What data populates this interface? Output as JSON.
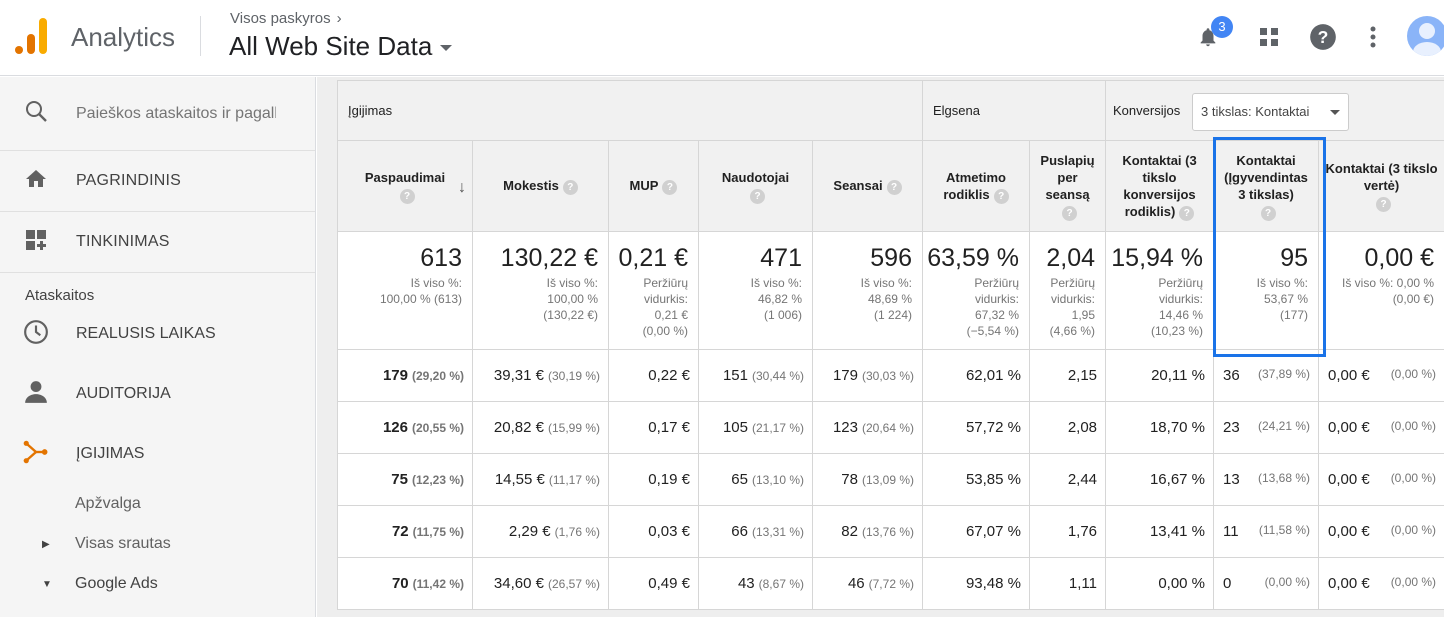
{
  "header": {
    "app_name": "Analytics",
    "account_path": "Visos paskyros",
    "view_name": "All Web Site Data",
    "notifications_count": "3",
    "colors": {
      "brand_orange": "#e37400",
      "brand_yellow": "#f9ab00",
      "badge_blue": "#4285f4"
    }
  },
  "sidebar": {
    "search_placeholder": "Paieškos ataskaitos ir pagalba",
    "home": "PAGRINDINIS",
    "customization": "TINKINIMAS",
    "reports_label": "Ataskaitos",
    "realtime": "REALUSIS LAIKAS",
    "audience": "AUDITORIJA",
    "acquisition": "ĮGIJIMAS",
    "overview": "Apžvalga",
    "all_traffic": "Visas srautas",
    "google_ads": "Google Ads"
  },
  "table": {
    "groups": {
      "acquisition": "Įgijimas",
      "behavior": "Elgsena",
      "conversions": "Konversijos",
      "goal_select": "3 tikslas: Kontaktai"
    },
    "columns": {
      "clicks": "Paspaudimai",
      "cost": "Mokestis",
      "cpc": "MUP",
      "users": "Naudotojai",
      "sessions": "Seansai",
      "bounce_rate": "Atmetimo rodiklis",
      "pages_per_session": "Puslapių per seansą",
      "conv_rate": "Kontaktai (3 tikslo konversijos rodiklis)",
      "completions": "Kontaktai (Įgyvendintas 3 tikslas)",
      "value": "Kontaktai (3 tikslo vertė)"
    },
    "totals": {
      "clicks": {
        "value": "613",
        "sub1": "Iš viso %:",
        "sub2": "100,00 % (613)"
      },
      "cost": {
        "value": "130,22 €",
        "sub1": "Iš viso %:",
        "sub2": "100,00 %",
        "sub3": "(130,22 €)"
      },
      "cpc": {
        "value": "0,21 €",
        "sub1": "Peržiūrų",
        "sub2": "vidurkis:",
        "sub3": "0,21 €",
        "sub4": "(0,00 %)"
      },
      "users": {
        "value": "471",
        "sub1": "Iš viso %:",
        "sub2": "46,82 %",
        "sub3": "(1 006)"
      },
      "sessions": {
        "value": "596",
        "sub1": "Iš viso %:",
        "sub2": "48,69 %",
        "sub3": "(1 224)"
      },
      "bounce_rate": {
        "value": "63,59 %",
        "sub1": "Peržiūrų",
        "sub2": "vidurkis:",
        "sub3": "67,32 %",
        "sub4": "(−5,54 %)"
      },
      "pages_per_session": {
        "value": "2,04",
        "sub1": "Peržiūrų",
        "sub2": "vidurkis:",
        "sub3": "1,95",
        "sub4": "(4,66 %)"
      },
      "conv_rate": {
        "value": "15,94 %",
        "sub1": "Peržiūrų",
        "sub2": "vidurkis:",
        "sub3": "14,46 %",
        "sub4": "(10,23 %)"
      },
      "completions": {
        "value": "95",
        "sub1": "Iš viso %:",
        "sub2": "53,67 %",
        "sub3": "(177)"
      },
      "value": {
        "value": "0,00 €",
        "sub1": "Iš viso %: 0,00 %",
        "sub2": "(0,00 €)"
      }
    },
    "rows": [
      {
        "clicks": "179",
        "clicks_pct": "(29,20 %)",
        "cost": "39,31 €",
        "cost_pct": "(30,19 %)",
        "cpc": "0,22 €",
        "users": "151",
        "users_pct": "(30,44 %)",
        "sessions": "179",
        "sessions_pct": "(30,03 %)",
        "bounce": "62,01 %",
        "pps": "2,15",
        "conv_rate": "20,11 %",
        "comp": "36",
        "comp_pct": "(37,89 %)",
        "value": "0,00 €",
        "value_pct": "(0,00 %)"
      },
      {
        "clicks": "126",
        "clicks_pct": "(20,55 %)",
        "cost": "20,82 €",
        "cost_pct": "(15,99 %)",
        "cpc": "0,17 €",
        "users": "105",
        "users_pct": "(21,17 %)",
        "sessions": "123",
        "sessions_pct": "(20,64 %)",
        "bounce": "57,72 %",
        "pps": "2,08",
        "conv_rate": "18,70 %",
        "comp": "23",
        "comp_pct": "(24,21 %)",
        "value": "0,00 €",
        "value_pct": "(0,00 %)"
      },
      {
        "clicks": "75",
        "clicks_pct": "(12,23 %)",
        "cost": "14,55 €",
        "cost_pct": "(11,17 %)",
        "cpc": "0,19 €",
        "users": "65",
        "users_pct": "(13,10 %)",
        "sessions": "78",
        "sessions_pct": "(13,09 %)",
        "bounce": "53,85 %",
        "pps": "2,44",
        "conv_rate": "16,67 %",
        "comp": "13",
        "comp_pct": "(13,68 %)",
        "value": "0,00 €",
        "value_pct": "(0,00 %)"
      },
      {
        "clicks": "72",
        "clicks_pct": "(11,75 %)",
        "cost": "2,29 €",
        "cost_pct": "(1,76 %)",
        "cpc": "0,03 €",
        "users": "66",
        "users_pct": "(13,31 %)",
        "sessions": "82",
        "sessions_pct": "(13,76 %)",
        "bounce": "67,07 %",
        "pps": "1,76",
        "conv_rate": "13,41 %",
        "comp": "11",
        "comp_pct": "(11,58 %)",
        "value": "0,00 €",
        "value_pct": "(0,00 %)"
      },
      {
        "clicks": "70",
        "clicks_pct": "(11,42 %)",
        "cost": "34,60 €",
        "cost_pct": "(26,57 %)",
        "cpc": "0,49 €",
        "users": "43",
        "users_pct": "(8,67 %)",
        "sessions": "46",
        "sessions_pct": "(7,72 %)",
        "bounce": "93,48 %",
        "pps": "1,11",
        "conv_rate": "0,00 %",
        "comp": "0",
        "comp_pct": "(0,00 %)",
        "value": "0,00 €",
        "value_pct": "(0,00 %)"
      }
    ]
  }
}
